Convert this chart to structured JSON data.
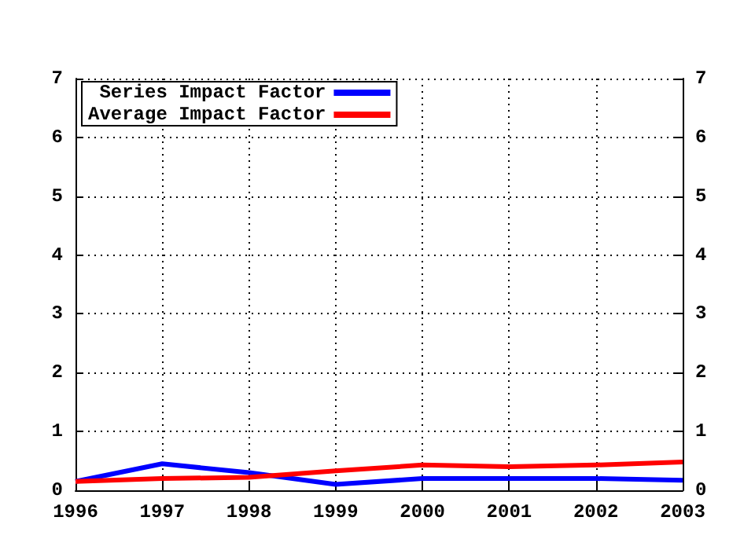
{
  "chart_data": {
    "type": "line",
    "x": [
      1996,
      1997,
      1998,
      1999,
      2000,
      2001,
      2002,
      2003
    ],
    "series": [
      {
        "name": "Series Impact Factor",
        "color": "#0000ff",
        "values": [
          0.15,
          0.45,
          0.3,
          0.1,
          0.2,
          0.2,
          0.2,
          0.17
        ]
      },
      {
        "name": "Average Impact Factor",
        "color": "#ff0000",
        "values": [
          0.15,
          0.2,
          0.22,
          0.33,
          0.43,
          0.4,
          0.43,
          0.48
        ]
      }
    ],
    "xlim": [
      1996,
      2003
    ],
    "xticks": [
      1996,
      1997,
      1998,
      1999,
      2000,
      2001,
      2002,
      2003
    ],
    "ylim": [
      0,
      7
    ],
    "yticks": [
      0,
      1,
      2,
      3,
      4,
      5,
      6,
      7
    ],
    "y2lim": [
      0,
      7
    ],
    "y2ticks": [
      0,
      1,
      2,
      3,
      4,
      5,
      6,
      7
    ],
    "grid": true,
    "legend": "top left",
    "marker": "none",
    "line_style": "solid"
  }
}
